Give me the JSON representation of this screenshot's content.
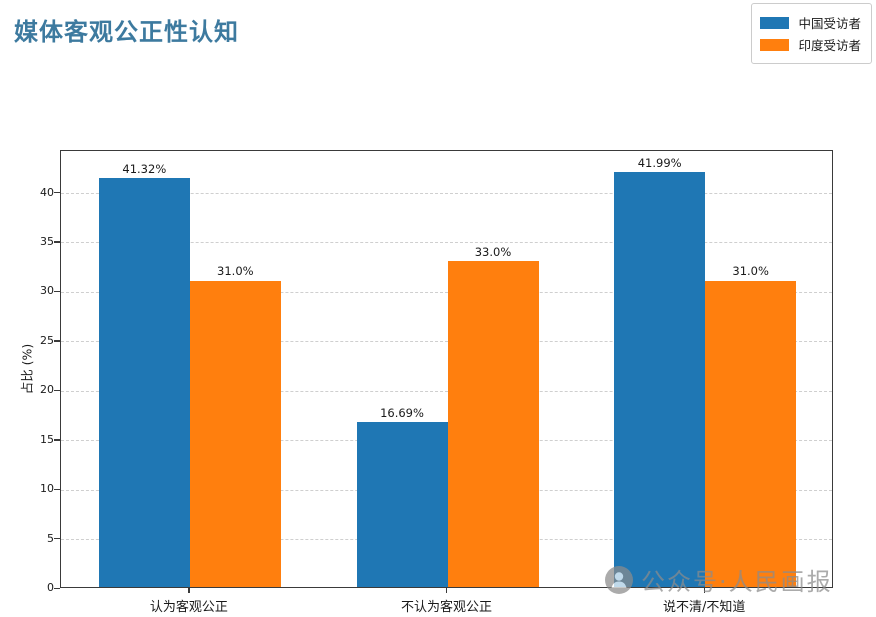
{
  "title": "媒体客观公正性认知",
  "title_color": "#3d7a9f",
  "watermark": {
    "text": "公众号·人民画报",
    "icon": "wechat-official-account-icon"
  },
  "chart_data": {
    "type": "bar",
    "title": "媒体客观公正性认知",
    "categories": [
      "认为客观公正",
      "不认为客观公正",
      "说不清/不知道"
    ],
    "series": [
      {
        "name": "中国受访者",
        "color": "#1f77b4",
        "values": [
          41.32,
          16.69,
          41.99
        ],
        "labels": [
          "41.32%",
          "16.69%",
          "41.99%"
        ]
      },
      {
        "name": "印度受访者",
        "color": "#ff7f0e",
        "values": [
          31.0,
          33.0,
          31.0
        ],
        "labels": [
          "31.0%",
          "33.0%",
          "31.0%"
        ]
      }
    ],
    "xlabel": "",
    "ylabel": "占比 (%)",
    "yticks": [
      0,
      5,
      10,
      15,
      20,
      25,
      30,
      35,
      40
    ],
    "ylim": [
      0,
      44.3
    ],
    "grid": true,
    "grid_style": "dashed",
    "legend_position": "upper right"
  }
}
